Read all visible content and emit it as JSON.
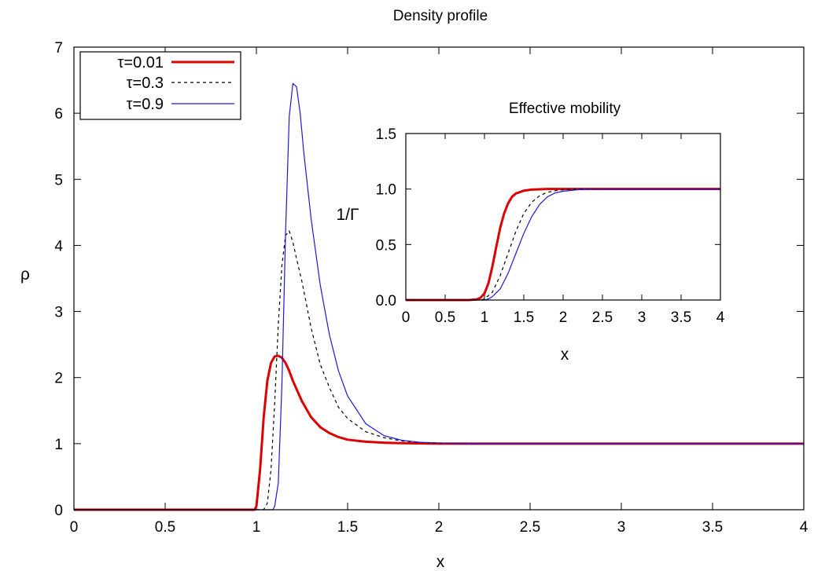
{
  "chart_data": [
    {
      "id": "main",
      "type": "line",
      "title": "Density profile",
      "xlabel": "x",
      "ylabel": "ρ",
      "xlim": [
        0,
        4
      ],
      "ylim": [
        0,
        7
      ],
      "xticks": [
        0,
        0.5,
        1,
        1.5,
        2,
        2.5,
        3,
        3.5,
        4
      ],
      "xtick_labels": [
        "0",
        "0.5",
        "1",
        "1.5",
        "2",
        "2.5",
        "3",
        "3.5",
        "4"
      ],
      "yticks": [
        0,
        1,
        2,
        3,
        4,
        5,
        6,
        7
      ],
      "ytick_labels": [
        "0",
        "1",
        "2",
        "3",
        "4",
        "5",
        "6",
        "7"
      ],
      "grid": false,
      "legend": "top-left",
      "series": [
        {
          "name": "τ=0.01",
          "color": "#dd0000",
          "style": "solid-thick",
          "x": [
            0,
            0.99,
            1.0,
            1.02,
            1.04,
            1.06,
            1.08,
            1.1,
            1.12,
            1.14,
            1.16,
            1.18,
            1.2,
            1.25,
            1.3,
            1.35,
            1.4,
            1.45,
            1.5,
            1.6,
            1.7,
            1.8,
            2.0,
            4.0
          ],
          "y": [
            0,
            0,
            0.05,
            0.6,
            1.4,
            1.95,
            2.22,
            2.32,
            2.33,
            2.3,
            2.22,
            2.1,
            1.95,
            1.64,
            1.4,
            1.25,
            1.16,
            1.1,
            1.06,
            1.03,
            1.015,
            1.007,
            1.0,
            1.0
          ]
        },
        {
          "name": "τ=0.3",
          "color": "#000000",
          "style": "dashed",
          "x": [
            0,
            1.04,
            1.06,
            1.08,
            1.1,
            1.12,
            1.14,
            1.16,
            1.18,
            1.2,
            1.22,
            1.25,
            1.3,
            1.35,
            1.4,
            1.45,
            1.5,
            1.6,
            1.7,
            1.8,
            1.9,
            2.0,
            2.2,
            4.0
          ],
          "y": [
            0,
            0,
            0.1,
            0.6,
            1.6,
            2.8,
            3.7,
            4.15,
            4.22,
            4.05,
            3.8,
            3.45,
            2.75,
            2.2,
            1.85,
            1.55,
            1.38,
            1.18,
            1.09,
            1.04,
            1.02,
            1.01,
            1.0,
            1.0
          ]
        },
        {
          "name": "τ=0.9",
          "color": "#1a1ad4",
          "style": "solid-thin",
          "x": [
            0,
            1.09,
            1.1,
            1.12,
            1.14,
            1.16,
            1.18,
            1.2,
            1.22,
            1.24,
            1.26,
            1.3,
            1.35,
            1.4,
            1.45,
            1.5,
            1.6,
            1.7,
            1.8,
            1.9,
            2.0,
            2.2,
            2.4,
            4.0
          ],
          "y": [
            0,
            0,
            0.05,
            0.4,
            1.9,
            4.2,
            5.95,
            6.45,
            6.4,
            6.0,
            5.4,
            4.4,
            3.4,
            2.65,
            2.1,
            1.72,
            1.3,
            1.12,
            1.05,
            1.02,
            1.01,
            1.0,
            1.0,
            1.0
          ]
        }
      ]
    },
    {
      "id": "inset",
      "type": "line",
      "title": "Effective mobility",
      "xlabel": "x",
      "ylabel": "1/Γ",
      "xlim": [
        0,
        4
      ],
      "ylim": [
        0,
        1.5
      ],
      "xticks": [
        0,
        0.5,
        1,
        1.5,
        2,
        2.5,
        3,
        3.5,
        4
      ],
      "xtick_labels": [
        "0",
        "0.5",
        "1",
        "1.5",
        "2",
        "2.5",
        "3",
        "3.5",
        "4"
      ],
      "yticks": [
        0,
        0.5,
        1,
        1.5
      ],
      "ytick_labels": [
        "0.0",
        "0.5",
        "1.0",
        "1.5"
      ],
      "grid": false,
      "series": [
        {
          "name": "τ=0.01",
          "color": "#dd0000",
          "style": "solid-thick",
          "x": [
            0,
            0.8,
            0.9,
            0.95,
            1.0,
            1.05,
            1.1,
            1.15,
            1.2,
            1.25,
            1.3,
            1.35,
            1.4,
            1.5,
            1.6,
            1.7,
            1.8,
            2.0,
            4.0
          ],
          "y": [
            0,
            0,
            0.005,
            0.02,
            0.06,
            0.15,
            0.3,
            0.48,
            0.65,
            0.78,
            0.87,
            0.93,
            0.96,
            0.985,
            0.995,
            0.998,
            1.0,
            1.0,
            1.0
          ]
        },
        {
          "name": "τ=0.3",
          "color": "#000000",
          "style": "dashed",
          "x": [
            0,
            0.95,
            1.0,
            1.1,
            1.2,
            1.3,
            1.4,
            1.5,
            1.6,
            1.7,
            1.8,
            1.9,
            2.0,
            2.2,
            4.0
          ],
          "y": [
            0,
            0,
            0.01,
            0.07,
            0.22,
            0.42,
            0.62,
            0.78,
            0.88,
            0.94,
            0.97,
            0.985,
            0.993,
            1.0,
            1.0
          ]
        },
        {
          "name": "τ=0.9",
          "color": "#1a1ad4",
          "style": "solid-thin",
          "x": [
            0,
            1.0,
            1.05,
            1.1,
            1.2,
            1.3,
            1.4,
            1.5,
            1.6,
            1.7,
            1.8,
            1.9,
            2.0,
            2.2,
            2.4,
            4.0
          ],
          "y": [
            0,
            0,
            0.01,
            0.03,
            0.1,
            0.24,
            0.42,
            0.6,
            0.75,
            0.86,
            0.93,
            0.965,
            0.98,
            0.995,
            1.0,
            1.0
          ]
        }
      ]
    }
  ]
}
